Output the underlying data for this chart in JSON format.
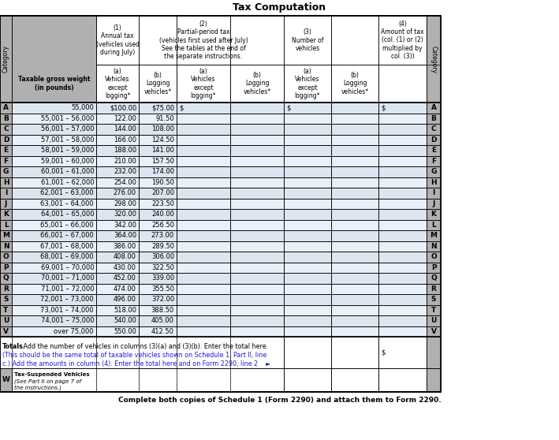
{
  "title": "Tax Computation",
  "footer": "Complete both copies of Schedule 1 (Form 2290) and attach them to Form 2290.",
  "col1_header": "(1)\nAnnual tax\n(vehicles used\nduring July)",
  "col2_header": "(2)\nPartial-period tax\n(vehicles first used after July)\nSee the tables at the end of\nthe separate instructions.",
  "col3_header": "(3)\nNumber of\nvehicles",
  "col4_header": "(4)\nAmount of tax\n(col. (1) or (2)\nmultiplied by\ncol. (3))",
  "sub_a": "(a)\nVehicles\nexcept\nlogging*",
  "sub_b": "(b)\nLogging\nvehicles*",
  "weight_header": "Taxable gross weight\n(in pounds)",
  "category_label": "Category",
  "rows": [
    {
      "cat": "A",
      "weight": "55,000",
      "ann_a": "$100.00",
      "ann_b": "$75.00",
      "pa": "$",
      "pb": "$",
      "amt": "$"
    },
    {
      "cat": "B",
      "weight": "55,001 – 56,000",
      "ann_a": "122.00",
      "ann_b": "91.50",
      "pa": "",
      "pb": "",
      "amt": ""
    },
    {
      "cat": "C",
      "weight": "56,001 – 57,000",
      "ann_a": "144.00",
      "ann_b": "108.00",
      "pa": "",
      "pb": "",
      "amt": ""
    },
    {
      "cat": "D",
      "weight": "57,001 – 58,000",
      "ann_a": "166.00",
      "ann_b": "124.50",
      "pa": "",
      "pb": "",
      "amt": ""
    },
    {
      "cat": "E",
      "weight": "58,001 – 59,000",
      "ann_a": "188.00",
      "ann_b": "141.00",
      "pa": "",
      "pb": "",
      "amt": ""
    },
    {
      "cat": "F",
      "weight": "59,001 – 60,000",
      "ann_a": "210.00",
      "ann_b": "157.50",
      "pa": "",
      "pb": "",
      "amt": ""
    },
    {
      "cat": "G",
      "weight": "60,001 – 61,000",
      "ann_a": "232.00",
      "ann_b": "174.00",
      "pa": "",
      "pb": "",
      "amt": ""
    },
    {
      "cat": "H",
      "weight": "61,001 – 62,000",
      "ann_a": "254.00",
      "ann_b": "190.50",
      "pa": "",
      "pb": "",
      "amt": ""
    },
    {
      "cat": "I",
      "weight": "62,001 – 63,000",
      "ann_a": "276.00",
      "ann_b": "207.00",
      "pa": "",
      "pb": "",
      "amt": ""
    },
    {
      "cat": "J",
      "weight": "63,001 – 64,000",
      "ann_a": "298.00",
      "ann_b": "223.50",
      "pa": "",
      "pb": "",
      "amt": ""
    },
    {
      "cat": "K",
      "weight": "64,001 – 65,000",
      "ann_a": "320.00",
      "ann_b": "240.00",
      "pa": "",
      "pb": "",
      "amt": ""
    },
    {
      "cat": "L",
      "weight": "65,001 – 66,000",
      "ann_a": "342.00",
      "ann_b": "256.50",
      "pa": "",
      "pb": "",
      "amt": ""
    },
    {
      "cat": "M",
      "weight": "66,001 – 67,000",
      "ann_a": "364.00",
      "ann_b": "273.00",
      "pa": "",
      "pb": "",
      "amt": ""
    },
    {
      "cat": "N",
      "weight": "67,001 – 68,000",
      "ann_a": "386.00",
      "ann_b": "289.50",
      "pa": "",
      "pb": "",
      "amt": ""
    },
    {
      "cat": "O",
      "weight": "68,001 – 69,000",
      "ann_a": "408.00",
      "ann_b": "306.00",
      "pa": "",
      "pb": "",
      "amt": ""
    },
    {
      "cat": "P",
      "weight": "69,001 – 70,000",
      "ann_a": "430.00",
      "ann_b": "322.50",
      "pa": "",
      "pb": "",
      "amt": ""
    },
    {
      "cat": "Q",
      "weight": "70,001 – 71,000",
      "ann_a": "452.00",
      "ann_b": "339.00",
      "pa": "",
      "pb": "",
      "amt": ""
    },
    {
      "cat": "R",
      "weight": "71,001 – 72,000",
      "ann_a": "474.00",
      "ann_b": "355.50",
      "pa": "",
      "pb": "",
      "amt": ""
    },
    {
      "cat": "S",
      "weight": "72,001 – 73,000",
      "ann_a": "496.00",
      "ann_b": "372.00",
      "pa": "",
      "pb": "",
      "amt": ""
    },
    {
      "cat": "T",
      "weight": "73,001 – 74,000",
      "ann_a": "518.00",
      "ann_b": "388.50",
      "pa": "",
      "pb": "",
      "amt": ""
    },
    {
      "cat": "U",
      "weight": "74,001 – 75,000",
      "ann_a": "540.00",
      "ann_b": "405.00",
      "pa": "",
      "pb": "",
      "amt": ""
    },
    {
      "cat": "V",
      "weight": "over 75,000",
      "ann_a": "550.00",
      "ann_b": "412.50",
      "pa": "",
      "pb": "",
      "amt": ""
    }
  ],
  "totals_line1": "Totals.",
  "totals_line1b": " Add the number of vehicles in columns (3)(a) and (3)(b). Enter the total here.",
  "totals_line2": "(This should be the same total of taxable vehicles shown on Schedule 1, Part II, line",
  "totals_line3": "c.) Add the amounts in column (4). Enter the total here and on Form 2290, line 2",
  "w_line1": "Tax-Suspended Vehicles",
  "w_line2": "(See Part II on page 7 of",
  "w_line3": "the instructions.)",
  "bg": "#ffffff",
  "gray": "#b0b0b0",
  "light_blue": "#dce6f1",
  "lighter_blue": "#eaf0f8",
  "blue_text": "#1f1fd0",
  "black": "#000000"
}
